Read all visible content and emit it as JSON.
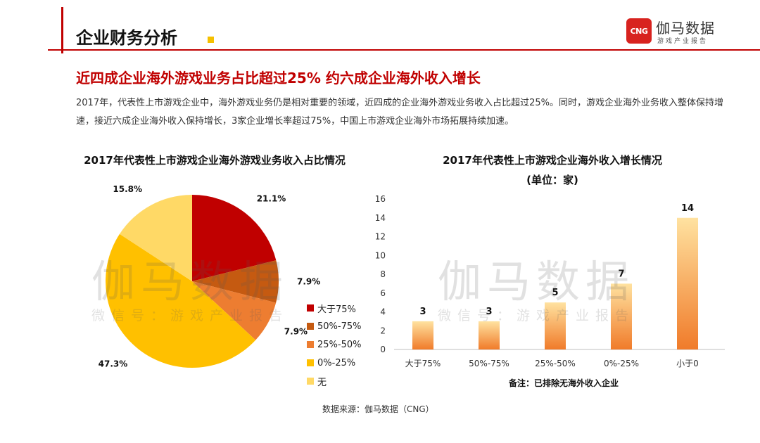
{
  "header": {
    "section_title": "企业财务分析",
    "logo_mark": "CNG",
    "logo_name": "伽马数据",
    "logo_sub": "游戏产业报告"
  },
  "headline": "近四成企业海外游戏业务占比超过25%  约六成企业海外收入增长",
  "body": "2017年，代表性上市游戏企业中，海外游戏业务仍是相对重要的领域，近四成的企业海外游戏业务收入占比超过25%。同时，游戏企业海外业务收入整体保持增速，接近六成企业海外收入保持增长，3家企业增长率超过75%，中国上市游戏企业海外市场拓展持续加速。",
  "watermark": {
    "main": "伽马数据",
    "sub": "微信号：游戏产业报告"
  },
  "colors": {
    "accent": "#c00000",
    "highlight": "#f5c000"
  },
  "chart_data": [
    {
      "type": "pie",
      "title": "2017年代表性上市游戏企业海外游戏业务收入占比情况",
      "categories": [
        "大于75%",
        "50%-75%",
        "25%-50%",
        "0%-25%",
        "无"
      ],
      "values": [
        21.1,
        7.9,
        7.9,
        47.3,
        15.8
      ],
      "value_labels": [
        "21.1%",
        "7.9%",
        "7.9%",
        "47.3%",
        "15.8%"
      ],
      "colors": [
        "#c00000",
        "#c55a11",
        "#ed7d31",
        "#ffc000",
        "#ffd966"
      ],
      "legend_position": "right"
    },
    {
      "type": "bar",
      "title": "2017年代表性上市游戏企业海外收入增长情况",
      "subtitle": "(单位：家)",
      "categories": [
        "大于75%",
        "50%-75%",
        "25%-50%",
        "0%-25%",
        "小于0"
      ],
      "values": [
        3,
        3,
        5,
        7,
        14
      ],
      "ylim": [
        0,
        16
      ],
      "yticks": [
        0,
        2,
        4,
        6,
        8,
        10,
        12,
        14,
        16
      ],
      "grid": false,
      "note": "备注：已排除无海外收入企业"
    }
  ],
  "source": "数据来源：伽马数据（CNG）"
}
